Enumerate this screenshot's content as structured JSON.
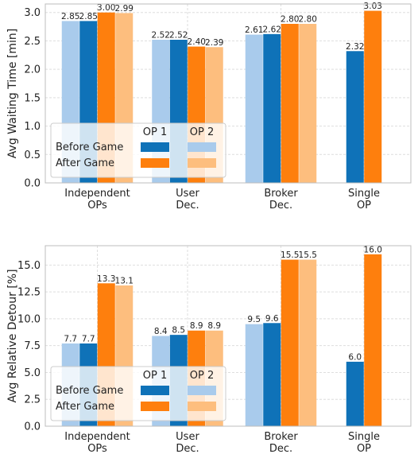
{
  "chart_data": [
    {
      "type": "bar",
      "ylabel": "Avg Waiting Time [min]",
      "ylim": [
        0,
        3.15
      ],
      "yticks": [
        "0.0",
        "0.5",
        "1.0",
        "1.5",
        "2.0",
        "2.5",
        "3.0"
      ],
      "ytick_values": [
        0,
        0.5,
        1.0,
        1.5,
        2.0,
        2.5,
        3.0
      ],
      "categories": [
        [
          "Independent",
          "OPs"
        ],
        [
          "User",
          "Dec."
        ],
        [
          "Broker",
          "Dec."
        ],
        [
          "Single",
          "OP"
        ]
      ],
      "grid": true,
      "legend_position": "lower-left",
      "series": [
        {
          "key": "before_op2",
          "values": [
            2.85,
            2.52,
            2.61,
            null
          ],
          "labels": [
            "2.85",
            "2.52",
            "2.61",
            ""
          ]
        },
        {
          "key": "before_op1",
          "values": [
            2.85,
            2.52,
            2.62,
            2.32
          ],
          "labels": [
            "2.85",
            "2.52",
            "2.62",
            "2.32"
          ]
        },
        {
          "key": "after_op1",
          "values": [
            3.0,
            2.4,
            2.8,
            3.03
          ],
          "labels": [
            "3.00",
            "2.40",
            "2.80",
            "3.03"
          ]
        },
        {
          "key": "after_op2",
          "values": [
            2.99,
            2.39,
            2.8,
            null
          ],
          "labels": [
            "2.99",
            "2.39",
            "2.80",
            ""
          ]
        }
      ]
    },
    {
      "type": "bar",
      "ylabel": "Avg Relative Detour [%]",
      "ylim": [
        0,
        16.8
      ],
      "yticks": [
        "0.0",
        "2.5",
        "5.0",
        "7.5",
        "10.0",
        "12.5",
        "15.0"
      ],
      "ytick_values": [
        0,
        2.5,
        5.0,
        7.5,
        10.0,
        12.5,
        15.0
      ],
      "categories": [
        [
          "Independent",
          "OPs"
        ],
        [
          "User",
          "Dec."
        ],
        [
          "Broker",
          "Dec."
        ],
        [
          "Single",
          "OP"
        ]
      ],
      "grid": true,
      "legend_position": "lower-left",
      "series": [
        {
          "key": "before_op2",
          "values": [
            7.7,
            8.4,
            9.5,
            null
          ],
          "labels": [
            "7.7",
            "8.4",
            "9.5",
            ""
          ]
        },
        {
          "key": "before_op1",
          "values": [
            7.7,
            8.5,
            9.6,
            6.0
          ],
          "labels": [
            "7.7",
            "8.5",
            "9.6",
            "6.0"
          ]
        },
        {
          "key": "after_op1",
          "values": [
            13.3,
            8.9,
            15.5,
            16.0
          ],
          "labels": [
            "13.3",
            "8.9",
            "15.5",
            "16.0"
          ]
        },
        {
          "key": "after_op2",
          "values": [
            13.1,
            8.9,
            15.5,
            null
          ],
          "labels": [
            "13.1",
            "8.9",
            "15.5",
            ""
          ]
        }
      ]
    }
  ],
  "legend": {
    "col_headers": [
      "OP 1",
      "OP 2"
    ],
    "row_labels": [
      "Before Game",
      "After Game"
    ]
  },
  "colors": {
    "before_op1": "#0f72b8",
    "before_op2": "#a9cbec",
    "after_op1": "#fe7f0d",
    "after_op2": "#fdbe7e",
    "grid": "#dedede",
    "axis": "#bdbdbd"
  }
}
